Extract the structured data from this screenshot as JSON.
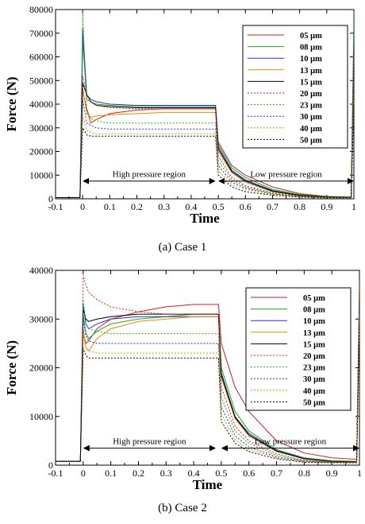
{
  "chart_data": [
    {
      "type": "line",
      "caption": "(a)  Case  1",
      "xlabel": "Time",
      "ylabel": "Force (N)",
      "xlim": [
        -0.1,
        1.0
      ],
      "ylim": [
        0,
        80000
      ],
      "xticks": [
        "-0.1",
        "0",
        "0.1",
        "0.2",
        "0.3",
        "0.4",
        "0.5",
        "0.6",
        "0.7",
        "0.8",
        "0.9",
        "1"
      ],
      "yticks": [
        "0",
        "10000",
        "20000",
        "30000",
        "40000",
        "50000",
        "60000",
        "70000",
        "80000"
      ],
      "annotations": [
        {
          "text": "High pressure region",
          "x_start": 0.0,
          "x_end": 0.49,
          "y": 7500
        },
        {
          "text": "Low pressure region",
          "x_start": 0.5,
          "x_end": 1.0,
          "y": 7500
        }
      ],
      "legend_position": "top-right",
      "series": [
        {
          "name": "05  μm",
          "color": "#cc2222",
          "dash": "solid",
          "x": [
            -0.1,
            -0.01,
            0.0,
            0.015,
            0.03,
            0.05,
            0.1,
            0.2,
            0.3,
            0.4,
            0.49,
            0.5,
            0.55,
            0.6,
            0.7,
            0.8,
            0.9,
            0.99,
            1.0
          ],
          "y": [
            500,
            500,
            46000,
            38000,
            32000,
            33500,
            36000,
            37500,
            38000,
            38000,
            38000,
            24000,
            14000,
            10000,
            5000,
            2200,
            1000,
            700,
            63000
          ]
        },
        {
          "name": "08  μm",
          "color": "#22aa22",
          "dash": "solid",
          "x": [
            -0.1,
            -0.01,
            0.0,
            0.015,
            0.03,
            0.05,
            0.1,
            0.2,
            0.3,
            0.4,
            0.49,
            0.5,
            0.55,
            0.6,
            0.7,
            0.8,
            0.9,
            0.99,
            1.0
          ],
          "y": [
            500,
            500,
            67000,
            42000,
            41000,
            40000,
            39500,
            39000,
            39000,
            39000,
            39000,
            23000,
            13000,
            9000,
            4000,
            1800,
            900,
            600,
            72000
          ]
        },
        {
          "name": "10  μm",
          "color": "#2233cc",
          "dash": "solid",
          "x": [
            -0.1,
            -0.01,
            0.0,
            0.015,
            0.03,
            0.05,
            0.1,
            0.2,
            0.3,
            0.4,
            0.49,
            0.5,
            0.55,
            0.6,
            0.7,
            0.8,
            0.9,
            0.99,
            1.0
          ],
          "y": [
            500,
            500,
            72000,
            44000,
            42000,
            41000,
            40000,
            39500,
            39500,
            39500,
            39500,
            22000,
            12000,
            8000,
            3500,
            1500,
            800,
            600,
            70000
          ]
        },
        {
          "name": "13  μm",
          "color": "#ee8800",
          "dash": "solid",
          "x": [
            -0.1,
            -0.01,
            0.0,
            0.015,
            0.03,
            0.05,
            0.1,
            0.2,
            0.3,
            0.4,
            0.49,
            0.5,
            0.55,
            0.6,
            0.7,
            0.8,
            0.9,
            0.99,
            1.0
          ],
          "y": [
            500,
            500,
            47000,
            36000,
            34500,
            35000,
            35500,
            36000,
            36500,
            36500,
            36500,
            20000,
            11000,
            7000,
            3000,
            1300,
            700,
            500,
            60000
          ]
        },
        {
          "name": "15  μm",
          "color": "#000000",
          "dash": "solid",
          "x": [
            -0.1,
            -0.01,
            0.0,
            0.015,
            0.03,
            0.05,
            0.1,
            0.2,
            0.3,
            0.4,
            0.49,
            0.5,
            0.55,
            0.6,
            0.7,
            0.8,
            0.9,
            0.99,
            1.0
          ],
          "y": [
            500,
            500,
            49000,
            44000,
            41000,
            39500,
            39000,
            38500,
            38500,
            38500,
            38500,
            21000,
            11500,
            7500,
            3200,
            1400,
            800,
            600,
            62000
          ]
        },
        {
          "name": "20  μm",
          "color": "#cc2222",
          "dash": "dotted",
          "x": [
            -0.1,
            -0.01,
            0.0,
            0.015,
            0.03,
            0.05,
            0.1,
            0.2,
            0.3,
            0.4,
            0.49,
            0.5,
            0.55,
            0.6,
            0.7,
            0.8,
            0.9,
            0.99,
            1.0
          ],
          "y": [
            500,
            500,
            52000,
            44000,
            41000,
            39500,
            38500,
            38000,
            38000,
            38000,
            38000,
            18000,
            9000,
            5500,
            2500,
            1100,
            600,
            500,
            64000
          ]
        },
        {
          "name": "23  μm",
          "color": "#22aa22",
          "dash": "dotted",
          "x": [
            -0.1,
            -0.01,
            0.0,
            0.015,
            0.03,
            0.05,
            0.1,
            0.2,
            0.3,
            0.4,
            0.49,
            0.5,
            0.55,
            0.6,
            0.7,
            0.8,
            0.9,
            0.99,
            1.0
          ],
          "y": [
            500,
            500,
            79000,
            38000,
            34000,
            33000,
            32000,
            32000,
            32000,
            32000,
            32000,
            16000,
            8000,
            5000,
            2200,
            1000,
            600,
            500,
            79000
          ]
        },
        {
          "name": "30  μm",
          "color": "#2233cc",
          "dash": "dotted",
          "x": [
            -0.1,
            -0.01,
            0.0,
            0.015,
            0.03,
            0.05,
            0.1,
            0.2,
            0.3,
            0.4,
            0.49,
            0.5,
            0.55,
            0.6,
            0.7,
            0.8,
            0.9,
            0.99,
            1.0
          ],
          "y": [
            500,
            500,
            42000,
            32000,
            31000,
            30000,
            29500,
            29500,
            29500,
            29500,
            29500,
            14000,
            7000,
            4500,
            2000,
            900,
            500,
            500,
            50000
          ]
        },
        {
          "name": "40  μm",
          "color": "#ee8800",
          "dash": "dotted",
          "x": [
            -0.1,
            -0.01,
            0.0,
            0.015,
            0.03,
            0.05,
            0.1,
            0.2,
            0.3,
            0.4,
            0.49,
            0.5,
            0.55,
            0.6,
            0.7,
            0.8,
            0.9,
            0.99,
            1.0
          ],
          "y": [
            500,
            500,
            35000,
            29000,
            28000,
            27500,
            27500,
            27500,
            27500,
            27500,
            27500,
            12000,
            6000,
            4000,
            1800,
            800,
            500,
            400,
            45000
          ]
        },
        {
          "name": "50  μm",
          "color": "#000000",
          "dash": "dotted",
          "x": [
            -0.1,
            -0.01,
            0.0,
            0.015,
            0.03,
            0.05,
            0.1,
            0.2,
            0.3,
            0.4,
            0.49,
            0.5,
            0.55,
            0.6,
            0.7,
            0.8,
            0.9,
            0.99,
            1.0
          ],
          "y": [
            500,
            500,
            30000,
            27000,
            26500,
            26500,
            26500,
            26500,
            26500,
            26500,
            26500,
            10000,
            5000,
            3000,
            1500,
            700,
            400,
            400,
            40000
          ]
        }
      ]
    },
    {
      "type": "line",
      "caption": "(b)  Case  2",
      "xlabel": "Time",
      "ylabel": "Force (N)",
      "xlim": [
        -0.1,
        1.0
      ],
      "ylim": [
        0,
        40000
      ],
      "xticks": [
        "-0.1",
        "0",
        "0.1",
        "0.2",
        "0.3",
        "0.4",
        "0.5",
        "0.6",
        "0.7",
        "0.8",
        "0.9",
        "1"
      ],
      "yticks": [
        "0",
        "10000",
        "20000",
        "30000",
        "40000"
      ],
      "annotations": [
        {
          "text": "High pressure region",
          "x_start": 0.0,
          "x_end": 0.48,
          "y": 3500
        },
        {
          "text": "Low pressure region",
          "x_start": 0.5,
          "x_end": 1.0,
          "y": 3500
        }
      ],
      "legend_position": "top-right",
      "series": [
        {
          "name": "05 μm",
          "color": "#cc2222",
          "dash": "solid",
          "x": [
            -0.1,
            -0.01,
            0.0,
            0.01,
            0.02,
            0.05,
            0.1,
            0.2,
            0.3,
            0.4,
            0.49,
            0.5,
            0.55,
            0.6,
            0.7,
            0.8,
            0.9,
            0.99,
            1.0
          ],
          "y": [
            800,
            800,
            27000,
            25000,
            25500,
            28000,
            30000,
            31500,
            32500,
            33000,
            33000,
            25000,
            16000,
            11000,
            5000,
            2500,
            1500,
            1200,
            37000
          ]
        },
        {
          "name": "08 μm",
          "color": "#22aa22",
          "dash": "solid",
          "x": [
            -0.1,
            -0.01,
            0.0,
            0.01,
            0.02,
            0.05,
            0.1,
            0.2,
            0.3,
            0.4,
            0.49,
            0.5,
            0.55,
            0.6,
            0.7,
            0.8,
            0.9,
            0.99,
            1.0
          ],
          "y": [
            800,
            800,
            31000,
            27000,
            26000,
            27500,
            29000,
            30000,
            30500,
            31000,
            31000,
            20000,
            11000,
            7000,
            3200,
            1500,
            900,
            800,
            35000
          ]
        },
        {
          "name": "10 μm",
          "color": "#2233cc",
          "dash": "solid",
          "x": [
            -0.1,
            -0.01,
            0.0,
            0.01,
            0.02,
            0.05,
            0.1,
            0.2,
            0.3,
            0.4,
            0.49,
            0.5,
            0.55,
            0.6,
            0.7,
            0.8,
            0.9,
            0.99,
            1.0
          ],
          "y": [
            800,
            800,
            33000,
            29000,
            28000,
            29000,
            30000,
            30500,
            30500,
            30500,
            30500,
            19000,
            10000,
            6500,
            3000,
            1400,
            800,
            700,
            34000
          ]
        },
        {
          "name": "13 μm",
          "color": "#ee8800",
          "dash": "solid",
          "x": [
            -0.1,
            -0.01,
            0.0,
            0.01,
            0.02,
            0.05,
            0.1,
            0.2,
            0.3,
            0.4,
            0.49,
            0.5,
            0.55,
            0.6,
            0.7,
            0.8,
            0.9,
            0.99,
            1.0
          ],
          "y": [
            800,
            800,
            28000,
            24000,
            23500,
            26000,
            28000,
            29500,
            30000,
            30500,
            30500,
            18000,
            9500,
            6000,
            2800,
            1300,
            800,
            700,
            33000
          ]
        },
        {
          "name": "15 μm",
          "color": "#000000",
          "dash": "solid",
          "x": [
            -0.1,
            -0.01,
            0.0,
            0.01,
            0.02,
            0.05,
            0.1,
            0.2,
            0.3,
            0.4,
            0.49,
            0.5,
            0.55,
            0.6,
            0.7,
            0.8,
            0.9,
            0.99,
            1.0
          ],
          "y": [
            800,
            800,
            32000,
            30000,
            29500,
            30000,
            30500,
            31000,
            31000,
            31000,
            31000,
            18500,
            9800,
            6200,
            2900,
            1300,
            800,
            700,
            34000
          ]
        },
        {
          "name": "20 μm",
          "color": "#cc2222",
          "dash": "dotted",
          "x": [
            -0.1,
            -0.01,
            0.0,
            0.01,
            0.02,
            0.05,
            0.1,
            0.2,
            0.3,
            0.4,
            0.49,
            0.5,
            0.55,
            0.6,
            0.7,
            0.8,
            0.9,
            0.99,
            1.0
          ],
          "y": [
            800,
            800,
            39000,
            37000,
            35500,
            34000,
            32500,
            31500,
            31000,
            31000,
            31000,
            16000,
            8000,
            5000,
            2300,
            1000,
            700,
            600,
            38000
          ]
        },
        {
          "name": "23 μm",
          "color": "#22aa22",
          "dash": "dotted",
          "x": [
            -0.1,
            -0.01,
            0.0,
            0.01,
            0.02,
            0.05,
            0.1,
            0.2,
            0.3,
            0.4,
            0.49,
            0.5,
            0.55,
            0.6,
            0.7,
            0.8,
            0.9,
            0.99,
            1.0
          ],
          "y": [
            800,
            800,
            34000,
            29000,
            28000,
            27500,
            27000,
            27000,
            27000,
            27000,
            27000,
            14000,
            7000,
            4500,
            2000,
            900,
            600,
            600,
            36000
          ]
        },
        {
          "name": "30 μm",
          "color": "#2233cc",
          "dash": "dotted",
          "x": [
            -0.1,
            -0.01,
            0.0,
            0.01,
            0.02,
            0.05,
            0.1,
            0.2,
            0.3,
            0.4,
            0.49,
            0.5,
            0.55,
            0.6,
            0.7,
            0.8,
            0.9,
            0.99,
            1.0
          ],
          "y": [
            800,
            800,
            30000,
            26500,
            25500,
            25000,
            25000,
            25000,
            25000,
            25000,
            25000,
            12000,
            6000,
            3800,
            1700,
            800,
            600,
            500,
            33000
          ]
        },
        {
          "name": "40 μm",
          "color": "#ee8800",
          "dash": "dotted",
          "x": [
            -0.1,
            -0.01,
            0.0,
            0.01,
            0.02,
            0.05,
            0.1,
            0.2,
            0.3,
            0.4,
            0.49,
            0.5,
            0.55,
            0.6,
            0.7,
            0.8,
            0.9,
            0.99,
            1.0
          ],
          "y": [
            800,
            800,
            27000,
            24000,
            23500,
            23000,
            23000,
            23000,
            23000,
            23000,
            23000,
            10500,
            5200,
            3300,
            1500,
            700,
            500,
            500,
            31000
          ]
        },
        {
          "name": "50 μm",
          "color": "#000000",
          "dash": "dotted",
          "x": [
            -0.1,
            -0.01,
            0.0,
            0.01,
            0.02,
            0.05,
            0.1,
            0.2,
            0.3,
            0.4,
            0.49,
            0.5,
            0.55,
            0.6,
            0.7,
            0.8,
            0.9,
            0.99,
            1.0
          ],
          "y": [
            800,
            800,
            24000,
            22500,
            22000,
            22000,
            22000,
            22000,
            22000,
            22000,
            22000,
            9000,
            4500,
            2800,
            1300,
            600,
            500,
            500,
            29000
          ]
        }
      ]
    }
  ]
}
